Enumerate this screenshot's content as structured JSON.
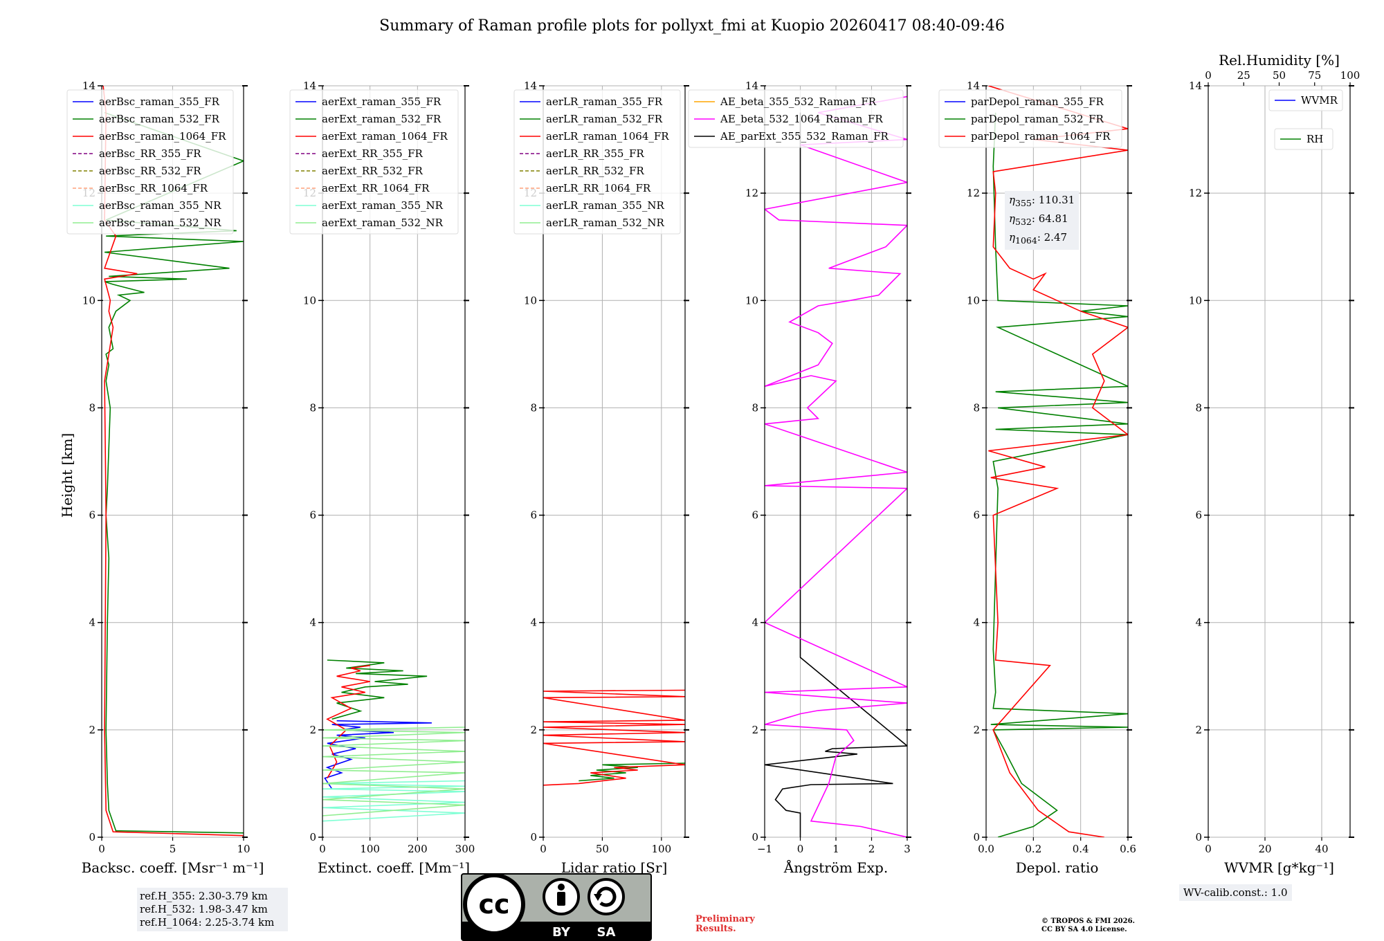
{
  "title": "Summary of Raman profile plots for pollyxt_fmi at Kuopio 20260417 08:40-09:46",
  "y_label": "Height [km]",
  "y_ticks": [
    "0",
    "2",
    "4",
    "6",
    "8",
    "10",
    "12",
    "14"
  ],
  "notes": {
    "ref_h": [
      "ref.H_355: 2.30-3.79 km",
      "ref.H_532: 1.98-3.47 km",
      "ref.H_1064: 2.25-3.74 km"
    ],
    "wv_calib": "WV-calib.const.: 1.0",
    "preliminary": [
      "Preliminary",
      "Results."
    ],
    "copyright": [
      "© TROPOS & FMI 2026.",
      "CC BY SA 4.0 License."
    ],
    "eta": [
      "110.31",
      "64.81",
      "2.47"
    ],
    "eta_subs": [
      "355",
      "532",
      "1064"
    ],
    "license_badge": {
      "cc": "cc",
      "by": "BY",
      "sa": "SA"
    }
  },
  "colors": {
    "blue": "#0000ff",
    "green": "#008000",
    "red": "#ff0000",
    "purple": "#800080",
    "olive": "#808000",
    "salmon": "#ffa07a",
    "cyan": "#7fffd4",
    "lightgreen": "#90ee90",
    "orange": "#ffa500",
    "magenta": "#ff00ff",
    "black": "#000000",
    "grid": "#b0b0b0"
  },
  "chart_data": [
    {
      "type": "line",
      "id": "backscatter",
      "xlabel": "Backsc. coeff. [Msr⁻¹ m⁻¹]",
      "xlim": [
        0,
        10
      ],
      "ylim": [
        0,
        14
      ],
      "x_ticks": [
        "0",
        "5",
        "10"
      ],
      "x_tick_values": [
        0,
        5,
        10
      ],
      "legend": [
        {
          "label": "aerBsc_raman_355_FR",
          "color": "blue",
          "dash": false
        },
        {
          "label": "aerBsc_raman_532_FR",
          "color": "green",
          "dash": false
        },
        {
          "label": "aerBsc_raman_1064_FR",
          "color": "red",
          "dash": false
        },
        {
          "label": "aerBsc_RR_355_FR",
          "color": "purple",
          "dash": true
        },
        {
          "label": "aerBsc_RR_532_FR",
          "color": "olive",
          "dash": true
        },
        {
          "label": "aerBsc_RR_1064_FR",
          "color": "salmon",
          "dash": true
        },
        {
          "label": "aerBsc_raman_355_NR",
          "color": "cyan",
          "dash": false
        },
        {
          "label": "aerBsc_raman_532_NR",
          "color": "lightgreen",
          "dash": false
        }
      ],
      "series": [
        {
          "name": "aerBsc_raman_532_FR",
          "color": "green",
          "x": [
            10,
            1,
            0.5,
            0.4,
            0.3,
            0.4,
            0.5,
            0.3,
            0.4,
            0.6,
            0.3,
            0.5,
            0.3,
            0.8,
            0.5,
            1.0,
            2.0,
            1.2,
            3.0,
            0.8,
            0.2,
            6.0,
            0.5,
            9.0,
            0.2,
            10,
            0.3,
            9.5,
            0.3,
            10,
            0.2
          ],
          "y": [
            0.08,
            0.12,
            0.5,
            1.0,
            2.0,
            4.0,
            5.2,
            6.0,
            6.5,
            8.0,
            8.5,
            8.8,
            9.0,
            9.1,
            9.5,
            9.8,
            10.0,
            10.1,
            10.15,
            10.3,
            10.35,
            10.4,
            10.45,
            10.6,
            10.9,
            11.1,
            11.2,
            11.3,
            11.5,
            12.6,
            13.5
          ]
        },
        {
          "name": "aerBsc_raman_1064_FR",
          "color": "red",
          "x": [
            10,
            0.8,
            0.3,
            0.2,
            0.3,
            0.2,
            0.5,
            0.8,
            0.5,
            0.6,
            0.2,
            2.5,
            0.2,
            1.0,
            0.2,
            0.3,
            0.1
          ],
          "y": [
            0.03,
            0.1,
            0.5,
            2.0,
            6.0,
            8.5,
            9.0,
            9.5,
            9.8,
            10.0,
            10.4,
            10.5,
            10.6,
            11.2,
            11.5,
            13.5,
            14.0
          ]
        }
      ]
    },
    {
      "type": "line",
      "id": "extinction",
      "xlabel": "Extinct. coeff. [Mm⁻¹]",
      "xlim": [
        0,
        300
      ],
      "ylim": [
        0,
        14
      ],
      "x_ticks": [
        "0",
        "100",
        "200",
        "300"
      ],
      "x_tick_values": [
        0,
        100,
        200,
        300
      ],
      "legend": [
        {
          "label": "aerExt_raman_355_FR",
          "color": "blue",
          "dash": false
        },
        {
          "label": "aerExt_raman_532_FR",
          "color": "green",
          "dash": false
        },
        {
          "label": "aerExt_raman_1064_FR",
          "color": "red",
          "dash": false
        },
        {
          "label": "aerExt_RR_355_FR",
          "color": "purple",
          "dash": true
        },
        {
          "label": "aerExt_RR_532_FR",
          "color": "olive",
          "dash": true
        },
        {
          "label": "aerExt_RR_1064_FR",
          "color": "salmon",
          "dash": true
        },
        {
          "label": "aerExt_raman_355_NR",
          "color": "cyan",
          "dash": false
        },
        {
          "label": "aerExt_raman_532_NR",
          "color": "lightgreen",
          "dash": false
        }
      ],
      "series": [
        {
          "name": "aerExt_raman_355_FR",
          "color": "blue",
          "x": [
            20,
            5,
            40,
            10,
            60,
            20,
            70,
            10,
            90,
            30,
            150,
            40,
            80,
            20,
            230,
            30
          ],
          "y": [
            0.9,
            1.1,
            1.2,
            1.3,
            1.45,
            1.55,
            1.65,
            1.75,
            1.85,
            1.9,
            1.95,
            2.0,
            2.05,
            2.1,
            2.13,
            2.17
          ]
        },
        {
          "name": "aerExt_raman_532_FR",
          "color": "green",
          "x": [
            20,
            80,
            30,
            130,
            40,
            90,
            180,
            110,
            220,
            70,
            170,
            50,
            130,
            10
          ],
          "y": [
            2.2,
            2.35,
            2.5,
            2.6,
            2.7,
            2.8,
            2.85,
            2.9,
            3.0,
            3.05,
            3.1,
            3.15,
            3.25,
            3.3
          ]
        },
        {
          "name": "aerExt_raman_1064_FR",
          "color": "red",
          "x": [
            10,
            30,
            15,
            50,
            10,
            60,
            20,
            90,
            40,
            100,
            30,
            80,
            60,
            100
          ],
          "y": [
            1.1,
            1.4,
            1.7,
            2.0,
            2.2,
            2.4,
            2.6,
            2.7,
            2.8,
            2.9,
            3.0,
            3.1,
            3.15,
            3.2
          ]
        },
        {
          "name": "aerExt_raman_355_NR",
          "color": "cyan",
          "x": [
            0,
            300,
            0,
            300,
            0,
            300,
            0,
            300,
            0,
            300
          ],
          "y": [
            0.3,
            0.45,
            0.55,
            0.65,
            0.75,
            0.85,
            0.9,
            0.95,
            1.0,
            1.05
          ]
        },
        {
          "name": "aerExt_raman_532_NR",
          "color": "lightgreen",
          "x": [
            0,
            300,
            0,
            300,
            0,
            300,
            0,
            300,
            0,
            300,
            0,
            300,
            0,
            300,
            0,
            300
          ],
          "y": [
            0.4,
            0.6,
            0.7,
            0.9,
            1.0,
            1.2,
            1.25,
            1.4,
            1.5,
            1.6,
            1.7,
            1.8,
            1.85,
            1.95,
            2.0,
            2.05
          ]
        }
      ]
    },
    {
      "type": "line",
      "id": "lidar_ratio",
      "xlabel": "Lidar ratio [Sr]",
      "xlim": [
        0,
        120
      ],
      "ylim": [
        0,
        14
      ],
      "x_ticks": [
        "0",
        "50",
        "100"
      ],
      "x_tick_values": [
        0,
        50,
        100
      ],
      "legend": [
        {
          "label": "aerLR_raman_355_FR",
          "color": "blue",
          "dash": false
        },
        {
          "label": "aerLR_raman_532_FR",
          "color": "green",
          "dash": false
        },
        {
          "label": "aerLR_raman_1064_FR",
          "color": "red",
          "dash": false
        },
        {
          "label": "aerLR_RR_355_FR",
          "color": "purple",
          "dash": true
        },
        {
          "label": "aerLR_RR_532_FR",
          "color": "olive",
          "dash": true
        },
        {
          "label": "aerLR_RR_1064_FR",
          "color": "salmon",
          "dash": true
        },
        {
          "label": "aerLR_raman_355_NR",
          "color": "cyan",
          "dash": false
        },
        {
          "label": "aerLR_raman_532_NR",
          "color": "lightgreen",
          "dash": false
        }
      ],
      "series": [
        {
          "name": "aerLR_raman_532_FR",
          "color": "green",
          "x": [
            30,
            60,
            40,
            70,
            45,
            80,
            50,
            120
          ],
          "y": [
            1.05,
            1.1,
            1.15,
            1.2,
            1.25,
            1.3,
            1.35,
            1.38
          ]
        },
        {
          "name": "aerLR_raman_1064_FR",
          "color": "red",
          "x": [
            0,
            30,
            70,
            40,
            80,
            60,
            120,
            0,
            120,
            0,
            120,
            0,
            120,
            0,
            120,
            0,
            120,
            0,
            120
          ],
          "y": [
            0.97,
            1.0,
            1.1,
            1.2,
            1.25,
            1.3,
            1.35,
            1.75,
            1.78,
            1.9,
            1.95,
            2.05,
            2.1,
            2.15,
            2.18,
            2.6,
            2.62,
            2.72,
            2.74
          ]
        }
      ]
    },
    {
      "type": "line",
      "id": "angstrom",
      "xlabel": "Ångström Exp.",
      "xlim": [
        -1,
        3
      ],
      "ylim": [
        0,
        14
      ],
      "x_ticks": [
        "−1",
        "0",
        "1",
        "2",
        "3"
      ],
      "x_tick_values": [
        -1,
        0,
        1,
        2,
        3
      ],
      "legend": [
        {
          "label": "AE_beta_355_532_Raman_FR",
          "color": "orange",
          "dash": false
        },
        {
          "label": "AE_beta_532_1064_Raman_FR",
          "color": "magenta",
          "dash": false
        },
        {
          "label": "AE_parExt_355_532_Raman_FR",
          "color": "black",
          "dash": false
        }
      ],
      "series": [
        {
          "name": "AE_parExt_355_532_Raman_FR",
          "color": "black",
          "x": [
            0,
            0,
            -0.4,
            -0.7,
            -0.5,
            0.3,
            2.6,
            -1,
            1.0,
            1.6,
            0.7,
            0.9,
            3,
            0,
            0
          ],
          "y": [
            0,
            0.45,
            0.5,
            0.7,
            0.9,
            0.98,
            1.0,
            1.35,
            1.5,
            1.55,
            1.6,
            1.65,
            1.7,
            3.35,
            13.5
          ]
        },
        {
          "name": "AE_beta_532_1064_Raman_FR",
          "color": "magenta",
          "x": [
            3,
            1.7,
            0.3,
            0.8,
            1.0,
            1.5,
            1.3,
            -1,
            0,
            0.5,
            3,
            -1,
            3,
            -1,
            3,
            -1,
            3,
            -1,
            0.5,
            0.2,
            1.0,
            0.3,
            -1,
            0.5,
            0.9,
            0.5,
            -0.3,
            0.5,
            1.4,
            2.2,
            2.8,
            0.8,
            2.4,
            3,
            -0.6,
            -1,
            3,
            0,
            3,
            0.5,
            3
          ],
          "y": [
            0,
            0.2,
            0.3,
            1.0,
            1.5,
            1.8,
            2.0,
            2.1,
            2.3,
            2.36,
            2.5,
            2.7,
            2.8,
            4.0,
            6.5,
            6.55,
            6.8,
            7.7,
            7.8,
            8.0,
            8.5,
            8.6,
            8.4,
            8.8,
            9.2,
            9.4,
            9.6,
            9.9,
            10.0,
            10.1,
            10.5,
            10.6,
            11.0,
            11.4,
            11.5,
            11.7,
            12.2,
            12.9,
            13.0,
            13.5,
            13.8
          ]
        }
      ]
    },
    {
      "type": "line",
      "id": "depolarization",
      "xlabel": "Depol. ratio",
      "xlim": [
        0,
        0.6
      ],
      "ylim": [
        0,
        14
      ],
      "x_ticks": [
        "0.0",
        "0.2",
        "0.4",
        "0.6"
      ],
      "x_tick_values": [
        0,
        0.2,
        0.4,
        0.6
      ],
      "legend": [
        {
          "label": "parDepol_raman_355_FR",
          "color": "blue",
          "dash": false
        },
        {
          "label": "parDepol_raman_532_FR",
          "color": "green",
          "dash": false
        },
        {
          "label": "parDepol_raman_1064_FR",
          "color": "red",
          "dash": false
        }
      ],
      "series": [
        {
          "name": "parDepol_raman_532_FR",
          "color": "green",
          "x": [
            0.05,
            0.2,
            0.3,
            0.15,
            0.08,
            0.03,
            0.6,
            0.02,
            0.6,
            0.03,
            0.04,
            0.03,
            0.05,
            0.03,
            0.6,
            0.04,
            0.6,
            0.05,
            0.6,
            0.04,
            0.6,
            0.05,
            0.6,
            0.4,
            0.6,
            0.05,
            0.04,
            0.03,
            0.04
          ],
          "y": [
            0,
            0.2,
            0.5,
            1.0,
            1.6,
            2.0,
            2.05,
            2.1,
            2.3,
            2.4,
            2.7,
            3.5,
            6.5,
            7.0,
            7.5,
            7.6,
            7.7,
            8.0,
            8.1,
            8.3,
            8.4,
            9.5,
            9.7,
            9.8,
            9.9,
            10.0,
            11.0,
            12.5,
            13.5
          ]
        },
        {
          "name": "parDepol_raman_1064_FR",
          "color": "red",
          "x": [
            0.5,
            0.35,
            0.22,
            0.1,
            0.03,
            0.27,
            0.04,
            0.05,
            0.03,
            0.3,
            0.02,
            0.25,
            0.01,
            0.6,
            0.45,
            0.5,
            0.45,
            0.6,
            0.4,
            0.3,
            0.2,
            0.25,
            0.2,
            0.1,
            0.03,
            0.04,
            0.03,
            0.6,
            0.2,
            0.6,
            0.01
          ],
          "y": [
            0,
            0.1,
            0.5,
            1.2,
            2.0,
            3.2,
            3.3,
            4.0,
            6.0,
            6.5,
            6.7,
            6.9,
            7.2,
            7.5,
            8.0,
            8.5,
            9.0,
            9.5,
            9.8,
            10.0,
            10.2,
            10.5,
            10.4,
            10.6,
            11.0,
            12.0,
            12.4,
            12.8,
            13.0,
            13.2,
            14.0
          ]
        }
      ]
    },
    {
      "type": "line",
      "id": "water_vapor",
      "xlabel": "WVMR [g*kg⁻¹]",
      "xlim": [
        0,
        50
      ],
      "ylim": [
        0,
        14
      ],
      "x_ticks": [
        "0",
        "20",
        "40"
      ],
      "x_tick_values": [
        0,
        20,
        40
      ],
      "top_axis": {
        "label": "Rel.Humidity [%]",
        "ticks": [
          "0",
          "25",
          "50",
          "75",
          "100"
        ],
        "values": [
          0,
          25,
          50,
          75,
          100
        ],
        "lim": [
          0,
          100
        ]
      },
      "legend": [
        {
          "label": "WVMR",
          "color": "blue",
          "dash": false
        },
        {
          "label": "RH",
          "color": "green",
          "dash": false
        }
      ],
      "series": []
    }
  ]
}
